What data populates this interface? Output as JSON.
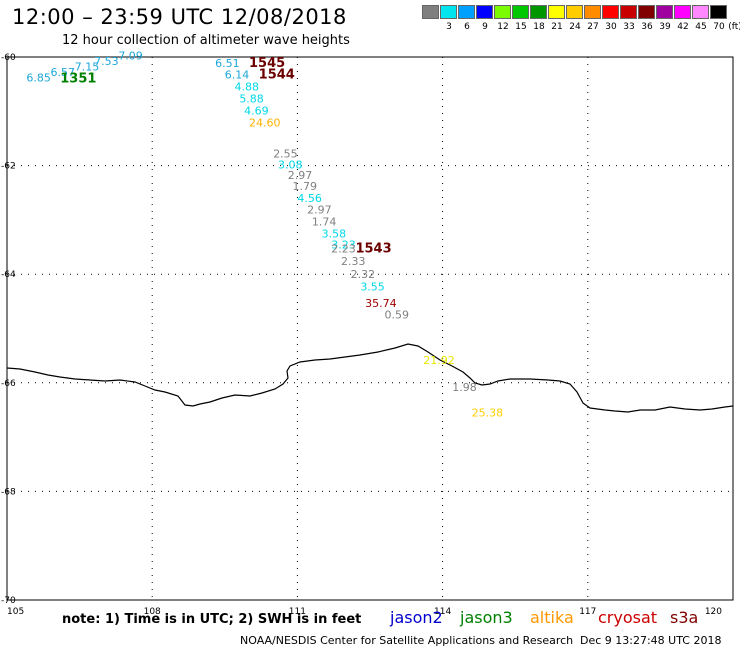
{
  "title": "12:00 – 23:59 UTC 12/08/2018",
  "subtitle": "12 hour collection of altimeter wave heights",
  "legend": {
    "unit": "(ft)",
    "entries": [
      {
        "label": "3",
        "color": "#7f7f7f"
      },
      {
        "label": "6",
        "color": "#00e5ee"
      },
      {
        "label": "9",
        "color": "#00a0ff"
      },
      {
        "label": "12",
        "color": "#0000ff"
      },
      {
        "label": "15",
        "color": "#7cfc00"
      },
      {
        "label": "18",
        "color": "#00c800"
      },
      {
        "label": "21",
        "color": "#009600"
      },
      {
        "label": "24",
        "color": "#ffff00"
      },
      {
        "label": "27",
        "color": "#ffcc00"
      },
      {
        "label": "30",
        "color": "#ff8c00"
      },
      {
        "label": "33",
        "color": "#ff0000"
      },
      {
        "label": "36",
        "color": "#c80000"
      },
      {
        "label": "39",
        "color": "#800000"
      },
      {
        "label": "42",
        "color": "#a000a0"
      },
      {
        "label": "45",
        "color": "#ff00ff"
      },
      {
        "label": "70",
        "color": "#ff88ff"
      },
      {
        "label": "",
        "color": "#000000"
      }
    ]
  },
  "axes": {
    "lon_ticks": [
      "105",
      "108",
      "111",
      "114",
      "117",
      "120"
    ],
    "lat_ticks": [
      "-60",
      "-62",
      "-64",
      "-66",
      "-68",
      "-70"
    ],
    "lon_range": [
      105,
      120
    ],
    "lat_range": [
      -60,
      -70
    ]
  },
  "observations": [
    {
      "text": "6.85",
      "lon": 105.4,
      "lat": -60.45,
      "color": "#1ca7d8"
    },
    {
      "text": "6.57",
      "lon": 105.9,
      "lat": -60.35,
      "color": "#1ca7d8"
    },
    {
      "text": "7.15",
      "lon": 106.4,
      "lat": -60.25,
      "color": "#1ca7d8"
    },
    {
      "text": "7.53",
      "lon": 106.8,
      "lat": -60.15,
      "color": "#1ca7d8"
    },
    {
      "text": "7.09",
      "lon": 107.3,
      "lat": -60.05,
      "color": "#1ca7d8"
    },
    {
      "text": "1351",
      "lon": 106.1,
      "lat": -60.47,
      "color": "#008000",
      "bold": true
    },
    {
      "text": "6.51",
      "lon": 109.3,
      "lat": -60.18,
      "color": "#1ca7d8"
    },
    {
      "text": "6.14",
      "lon": 109.5,
      "lat": -60.4,
      "color": "#1ca7d8"
    },
    {
      "text": "4.88",
      "lon": 109.7,
      "lat": -60.62,
      "color": "#00d8e8"
    },
    {
      "text": "5.88",
      "lon": 109.8,
      "lat": -60.84,
      "color": "#00d8e8"
    },
    {
      "text": "4.69",
      "lon": 109.9,
      "lat": -61.06,
      "color": "#00d8e8"
    },
    {
      "text": "24.60",
      "lon": 110.0,
      "lat": -61.28,
      "color": "#ffb000"
    },
    {
      "text": "1545",
      "lon": 110.0,
      "lat": -60.18,
      "color": "#6b0000",
      "bold": true
    },
    {
      "text": "1544",
      "lon": 110.2,
      "lat": -60.4,
      "color": "#6b0000",
      "bold": true
    },
    {
      "text": "2.55",
      "lon": 110.5,
      "lat": -61.85,
      "color": "#808080"
    },
    {
      "text": "3.08",
      "lon": 110.6,
      "lat": -62.05,
      "color": "#00d8e8"
    },
    {
      "text": "2.97",
      "lon": 110.8,
      "lat": -62.25,
      "color": "#808080"
    },
    {
      "text": "1.79",
      "lon": 110.9,
      "lat": -62.45,
      "color": "#808080"
    },
    {
      "text": "4.56",
      "lon": 111.0,
      "lat": -62.67,
      "color": "#00d8e8"
    },
    {
      "text": "2.97",
      "lon": 111.2,
      "lat": -62.88,
      "color": "#808080"
    },
    {
      "text": "1.74",
      "lon": 111.3,
      "lat": -63.1,
      "color": "#808080"
    },
    {
      "text": "3.58",
      "lon": 111.5,
      "lat": -63.32,
      "color": "#00d8e8"
    },
    {
      "text": "3.23",
      "lon": 111.7,
      "lat": -63.53,
      "color": "#00d8e8"
    },
    {
      "text": "2.23",
      "lon": 111.7,
      "lat": -63.6,
      "color": "#808080"
    },
    {
      "text": "1543",
      "lon": 112.2,
      "lat": -63.6,
      "color": "#6b0000",
      "bold": true
    },
    {
      "text": "2.33",
      "lon": 111.9,
      "lat": -63.83,
      "color": "#808080"
    },
    {
      "text": "2.32",
      "lon": 112.1,
      "lat": -64.07,
      "color": "#808080"
    },
    {
      "text": "3.55",
      "lon": 112.3,
      "lat": -64.3,
      "color": "#00d8e8"
    },
    {
      "text": "35.74",
      "lon": 112.4,
      "lat": -64.6,
      "color": "#a00000"
    },
    {
      "text": "0.59",
      "lon": 112.8,
      "lat": -64.82,
      "color": "#808080"
    },
    {
      "text": "21.92",
      "lon": 113.6,
      "lat": -65.65,
      "color": "#e8e800"
    },
    {
      "text": "1.98",
      "lon": 114.2,
      "lat": -66.15,
      "color": "#808080"
    },
    {
      "text": "25.38",
      "lon": 114.6,
      "lat": -66.62,
      "color": "#ffd000"
    }
  ],
  "note": "note:  1) Time is in UTC;  2) SWH is in feet",
  "satellites": [
    {
      "name": "jason2",
      "color": "#0000cc"
    },
    {
      "name": "jason3",
      "color": "#008000"
    },
    {
      "name": "altika",
      "color": "#ff9900"
    },
    {
      "name": "cryosat",
      "color": "#cc0000"
    },
    {
      "name": "s3a",
      "color": "#800000"
    }
  ],
  "footer": "NOAA/NESDIS Center for Satellite Applications and Research",
  "timestamp": "Dec  9 13:27:48 UTC 2018"
}
